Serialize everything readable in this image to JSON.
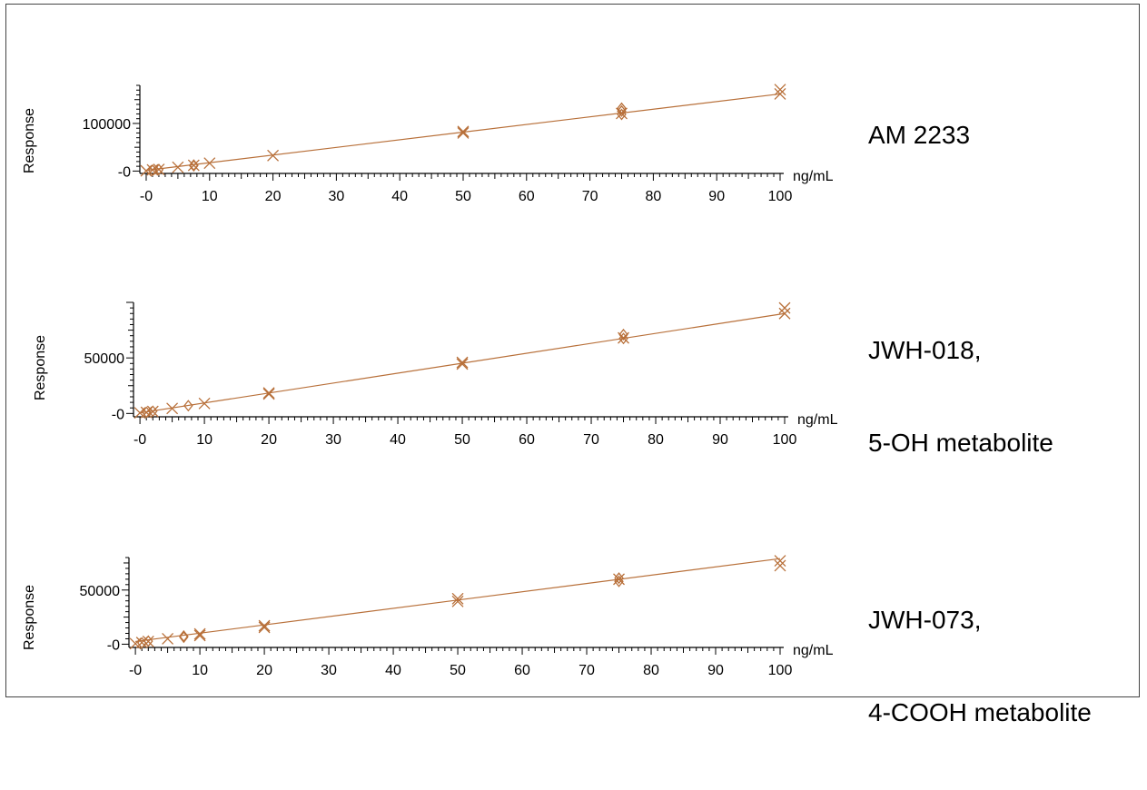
{
  "chart_data": [
    {
      "type": "scatter",
      "title_lines": [
        "AM 2233"
      ],
      "ylabel": "Response",
      "xunit": "ng/mL",
      "xlim": [
        -1,
        100
      ],
      "ylim": [
        -5000,
        180000
      ],
      "xticks": [
        0,
        10,
        20,
        30,
        40,
        50,
        60,
        70,
        80,
        90,
        100
      ],
      "xtick_labels": [
        "-0",
        "10",
        "20",
        "30",
        "40",
        "50",
        "60",
        "70",
        "80",
        "90",
        "100"
      ],
      "yticks": [
        0,
        100000
      ],
      "ytick_labels": [
        "-0",
        "100000"
      ],
      "fit_line": [
        [
          0,
          1500
        ],
        [
          100,
          162000
        ]
      ],
      "series": [
        {
          "marker": "x",
          "points": [
            [
              0,
              500
            ],
            [
              1,
              2500
            ],
            [
              2,
              3500
            ],
            [
              5,
              8000
            ],
            [
              7.5,
              12000
            ],
            [
              10,
              16500
            ],
            [
              20,
              32500
            ],
            [
              50,
              83000
            ],
            [
              50,
              80000
            ],
            [
              75,
              121000
            ],
            [
              100,
              171000
            ],
            [
              100,
              162000
            ]
          ]
        },
        {
          "marker": "diamond",
          "points": [
            [
              1,
              1800
            ],
            [
              2,
              3200
            ],
            [
              7.5,
              12500
            ],
            [
              7.5,
              11000
            ],
            [
              75,
              132000
            ],
            [
              75,
              126000
            ],
            [
              75,
              119000
            ]
          ]
        }
      ]
    },
    {
      "type": "scatter",
      "title_lines": [
        "JWH-018,",
        "5-OH metabolite"
      ],
      "ylabel": "Response",
      "xunit": "ng/mL",
      "xlim": [
        -1,
        100
      ],
      "ylim": [
        -3000,
        100000
      ],
      "xticks": [
        0,
        10,
        20,
        30,
        40,
        50,
        60,
        70,
        80,
        90,
        100
      ],
      "xtick_labels": [
        "-0",
        "10",
        "20",
        "30",
        "40",
        "50",
        "60",
        "70",
        "80",
        "90",
        "100"
      ],
      "yticks": [
        0,
        50000
      ],
      "ytick_labels": [
        "-0",
        "50000"
      ],
      "fit_line": [
        [
          0,
          500
        ],
        [
          100,
          90000
        ]
      ],
      "series": [
        {
          "marker": "x",
          "points": [
            [
              0,
              500
            ],
            [
              1,
              1000
            ],
            [
              2,
              1800
            ],
            [
              5,
              4500
            ],
            [
              10,
              9000
            ],
            [
              20,
              18500
            ],
            [
              20,
              17500
            ],
            [
              50,
              46000
            ],
            [
              50,
              44500
            ],
            [
              75,
              68000
            ],
            [
              100,
              95000
            ],
            [
              100,
              90000
            ]
          ]
        },
        {
          "marker": "diamond",
          "points": [
            [
              1,
              1100
            ],
            [
              2,
              2000
            ],
            [
              7.5,
              7000
            ],
            [
              75,
              71000
            ],
            [
              75,
              67500
            ]
          ]
        }
      ]
    },
    {
      "type": "scatter",
      "title_lines": [
        "JWH-073,",
        "4-COOH metabolite"
      ],
      "ylabel": "Response",
      "xunit": "ng/mL",
      "xlim": [
        -1,
        100
      ],
      "ylim": [
        -3000,
        80000
      ],
      "xticks": [
        0,
        10,
        20,
        30,
        40,
        50,
        60,
        70,
        80,
        90,
        100
      ],
      "xtick_labels": [
        "-0",
        "10",
        "20",
        "30",
        "40",
        "50",
        "60",
        "70",
        "80",
        "90",
        "100"
      ],
      "yticks": [
        0,
        50000
      ],
      "ytick_labels": [
        "-0",
        "50000"
      ],
      "fit_line": [
        [
          0,
          2500
        ],
        [
          100,
          79000
        ]
      ],
      "series": [
        {
          "marker": "x",
          "points": [
            [
              0,
              500
            ],
            [
              1,
              1500
            ],
            [
              2,
              2500
            ],
            [
              5,
              5000
            ],
            [
              10,
              9500
            ],
            [
              10,
              8000
            ],
            [
              20,
              17000
            ],
            [
              20,
              15500
            ],
            [
              50,
              42000
            ],
            [
              50,
              39500
            ],
            [
              75,
              60000
            ],
            [
              100,
              77000
            ],
            [
              100,
              72500
            ]
          ]
        },
        {
          "marker": "diamond",
          "points": [
            [
              1,
              1200
            ],
            [
              2,
              2800
            ],
            [
              7.5,
              7500
            ],
            [
              7.5,
              6500
            ],
            [
              75,
              61000
            ],
            [
              75,
              58000
            ]
          ]
        }
      ]
    }
  ],
  "colors": {
    "series": "#b8703a",
    "axis": "#000000",
    "frame": "#444444"
  }
}
